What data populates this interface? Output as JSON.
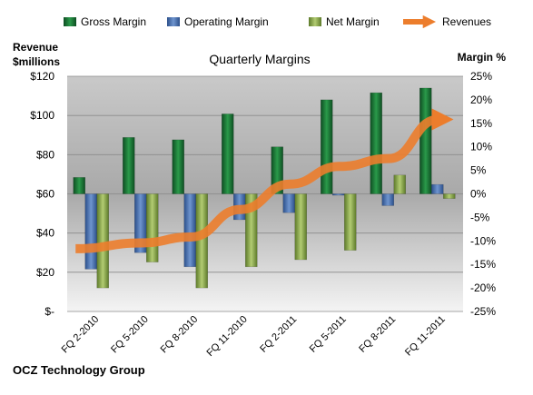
{
  "chart_data": {
    "type": "bar",
    "title": "Quarterly Margins",
    "footer": "OCZ Technology Group",
    "categories": [
      "FQ 2-2010",
      "FQ 5-2010",
      "FQ 8-2010",
      "FQ 11-2010",
      "FQ 2-2011",
      "FQ 5-2011",
      "FQ 8-2011",
      "FQ 11-2011"
    ],
    "left_axis": {
      "label_line1": "Revenue",
      "label_line2": "$millions",
      "ylim": [
        0,
        120
      ],
      "ticks": [
        "$-",
        "$20",
        "$40",
        "$60",
        "$80",
        "$100",
        "$120"
      ]
    },
    "right_axis": {
      "label": "Margin %",
      "ylim": [
        -25,
        25
      ],
      "ticks": [
        "-25%",
        "-20%",
        "-15%",
        "-10%",
        "-5%",
        "0%",
        "5%",
        "10%",
        "15%",
        "20%",
        "25%"
      ]
    },
    "series": [
      {
        "name": "Gross Margin",
        "kind": "bar",
        "axis": "right",
        "color": "#1f7a3a",
        "values": [
          3.5,
          12,
          11.5,
          17,
          10,
          20,
          21.5,
          22.5
        ]
      },
      {
        "name": "Operating Margin",
        "kind": "bar",
        "axis": "right",
        "color": "#4a72b0",
        "values": [
          -16,
          -12.5,
          -15.5,
          -5.5,
          -4,
          -0.3,
          -2.5,
          2
        ]
      },
      {
        "name": "Net Margin",
        "kind": "bar",
        "axis": "right",
        "color": "#8fac4e",
        "values": [
          -20,
          -14.5,
          -20,
          -15.5,
          -14,
          -12,
          4,
          -1
        ]
      },
      {
        "name": "Revenues",
        "kind": "line",
        "axis": "left",
        "color": "#ec7d2c",
        "values": [
          32,
          35,
          38,
          52,
          65,
          74,
          78,
          98
        ]
      }
    ],
    "grid": true
  }
}
